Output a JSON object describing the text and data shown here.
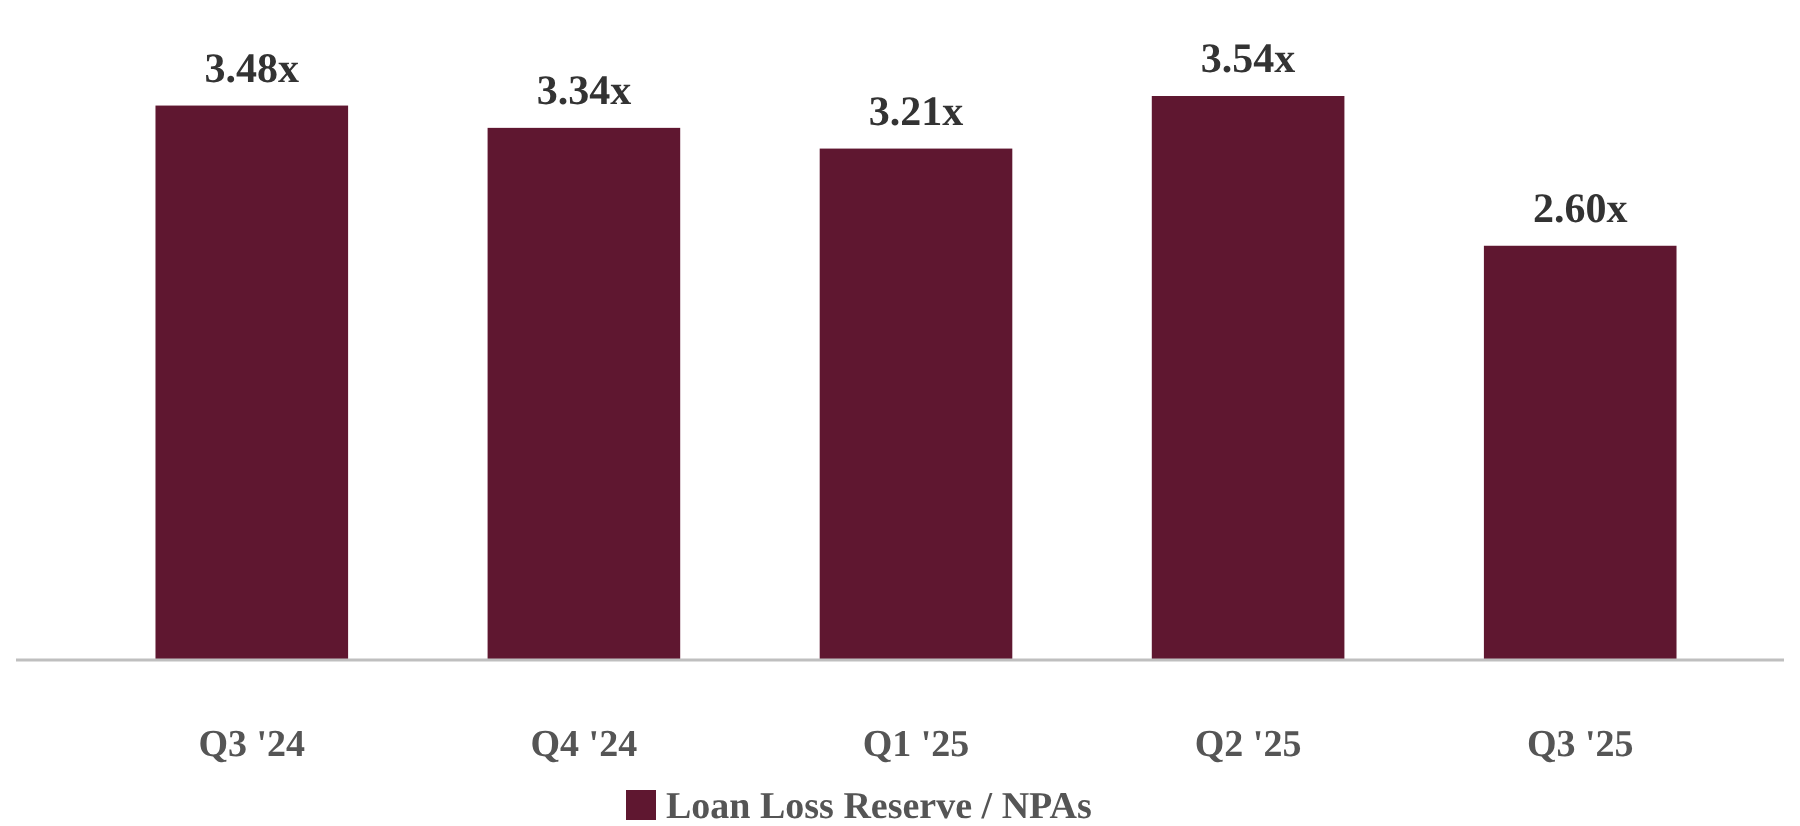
{
  "chart_data": {
    "type": "bar",
    "categories": [
      "Q3 '24",
      "Q4 '24",
      "Q1 '25",
      "Q2 '25",
      "Q3 '25"
    ],
    "series": [
      {
        "name": "Loan Loss Reserve / NPAs",
        "color": "#5f1730",
        "values": [
          3.48,
          3.34,
          3.21,
          3.54,
          2.6
        ],
        "value_labels": [
          "3.48x",
          "3.34x",
          "3.21x",
          "3.54x",
          "2.60x"
        ]
      }
    ],
    "legend": "bottom"
  }
}
